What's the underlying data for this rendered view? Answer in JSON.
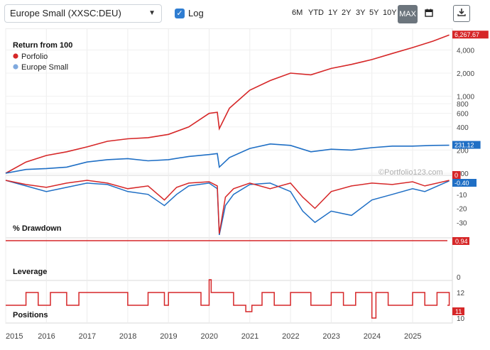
{
  "toolbar": {
    "benchmark_select": "Europe Small (XXSC:DEU)",
    "log_label": "Log",
    "log_checked": true,
    "ranges": [
      "6M",
      "YTD",
      "1Y",
      "2Y",
      "3Y",
      "5Y",
      "10Y",
      "MAX"
    ],
    "active_range": "MAX"
  },
  "colors": {
    "portfolio": "#d62728",
    "benchmark": "#1f6fc5",
    "grid": "#e6e6e6"
  },
  "watermark": "©Portfolio123.com",
  "chart_data": [
    {
      "type": "line",
      "title": "Return from 100",
      "log_scale": true,
      "y_ticks": [
        "4,000",
        "2,000",
        "1,000",
        "800",
        "600",
        "400",
        "200",
        "100"
      ],
      "series": [
        {
          "name": "Porfolio",
          "color": "#d62728",
          "last_value": "6,267.67",
          "x": [
            2015.0,
            2015.5,
            2016.0,
            2016.5,
            2017.0,
            2017.5,
            2018.0,
            2018.5,
            2019.0,
            2019.5,
            2020.0,
            2020.2,
            2020.25,
            2020.5,
            2021.0,
            2021.5,
            2022.0,
            2022.5,
            2023.0,
            2023.5,
            2024.0,
            2024.5,
            2025.0,
            2025.5,
            2025.9
          ],
          "values": [
            100,
            140,
            170,
            190,
            220,
            260,
            280,
            290,
            320,
            400,
            600,
            620,
            380,
            700,
            1200,
            1600,
            2000,
            1900,
            2300,
            2600,
            3000,
            3600,
            4300,
            5200,
            6267.67
          ]
        },
        {
          "name": "Europe Small",
          "color": "#1f6fc5",
          "last_value": "231.12",
          "x": [
            2015.0,
            2015.5,
            2016.0,
            2016.5,
            2017.0,
            2017.5,
            2018.0,
            2018.5,
            2019.0,
            2019.5,
            2020.0,
            2020.2,
            2020.25,
            2020.5,
            2021.0,
            2021.5,
            2022.0,
            2022.5,
            2023.0,
            2023.5,
            2024.0,
            2024.5,
            2025.0,
            2025.5,
            2025.9
          ],
          "values": [
            100,
            112,
            115,
            120,
            140,
            150,
            155,
            145,
            150,
            165,
            175,
            180,
            120,
            160,
            210,
            240,
            230,
            190,
            205,
            200,
            215,
            225,
            225,
            230,
            231.12
          ]
        }
      ]
    },
    {
      "type": "line",
      "title": "% Drawdown",
      "y_ticks": [
        "0",
        "-10",
        "-20",
        "-30"
      ],
      "series": [
        {
          "name": "Porfolio",
          "last_value": "0",
          "x": [
            2015,
            2015.5,
            2016,
            2016.5,
            2017,
            2017.5,
            2018,
            2018.5,
            2018.9,
            2019.2,
            2019.5,
            2020,
            2020.2,
            2020.25,
            2020.4,
            2020.6,
            2021,
            2021.5,
            2022,
            2022.3,
            2022.6,
            2023,
            2023.5,
            2024,
            2024.5,
            2025,
            2025.3,
            2025.9
          ],
          "values": [
            0,
            -3,
            -5,
            -2,
            0,
            -2,
            -6,
            -4,
            -14,
            -5,
            -2,
            -1,
            -4,
            -38,
            -12,
            -6,
            -2,
            -6,
            -2,
            -12,
            -20,
            -8,
            -4,
            -2,
            -3,
            -1,
            -4,
            0
          ]
        },
        {
          "name": "Europe Small",
          "last_value": "-0.40",
          "x": [
            2015,
            2015.5,
            2016,
            2016.5,
            2017,
            2017.5,
            2018,
            2018.5,
            2018.9,
            2019.2,
            2019.5,
            2020,
            2020.2,
            2020.25,
            2020.4,
            2020.6,
            2021,
            2021.5,
            2022,
            2022.3,
            2022.6,
            2023,
            2023.5,
            2024,
            2024.5,
            2025,
            2025.3,
            2025.9
          ],
          "values": [
            0,
            -4,
            -8,
            -5,
            -2,
            -3,
            -8,
            -10,
            -18,
            -10,
            -4,
            -2,
            -6,
            -39,
            -18,
            -10,
            -3,
            -2,
            -8,
            -22,
            -30,
            -22,
            -25,
            -14,
            -10,
            -6,
            -8,
            -0.4
          ]
        }
      ]
    },
    {
      "type": "line",
      "title": "Leverage",
      "y_ticks": [
        "0"
      ],
      "series": [
        {
          "name": "Porfolio",
          "last_value": "0.94",
          "values": [
            1,
            1,
            1,
            1,
            0.94
          ]
        }
      ]
    },
    {
      "type": "line",
      "title": "Positions",
      "y_ticks": [
        "12",
        "11",
        "10"
      ],
      "series": [
        {
          "name": "Porfolio",
          "last_value": "11",
          "x": [
            2015.0,
            2015.5,
            2015.8,
            2016.1,
            2016.5,
            2016.8,
            2017.0,
            2018.0,
            2018.5,
            2018.9,
            2019.0,
            2019.6,
            2019.8,
            2020.0,
            2020.05,
            2020.6,
            2020.9,
            2021.05,
            2021.3,
            2021.6,
            2022.0,
            2022.5,
            2023.0,
            2023.3,
            2023.6,
            2024.0,
            2024.1,
            2024.4,
            2025.0,
            2025.3,
            2025.6,
            2025.9
          ],
          "values": [
            11,
            12,
            11,
            12,
            11,
            12,
            12,
            11,
            12,
            11,
            12,
            12,
            11,
            13,
            12,
            11,
            10.5,
            11,
            12,
            11,
            12,
            11,
            12,
            11,
            12,
            10,
            12,
            11,
            12,
            11,
            12,
            11
          ]
        }
      ]
    }
  ],
  "x_axis": {
    "years": [
      "2015",
      "2016",
      "2017",
      "2018",
      "2019",
      "2020",
      "2021",
      "2022",
      "2023",
      "2024",
      "2025"
    ]
  }
}
